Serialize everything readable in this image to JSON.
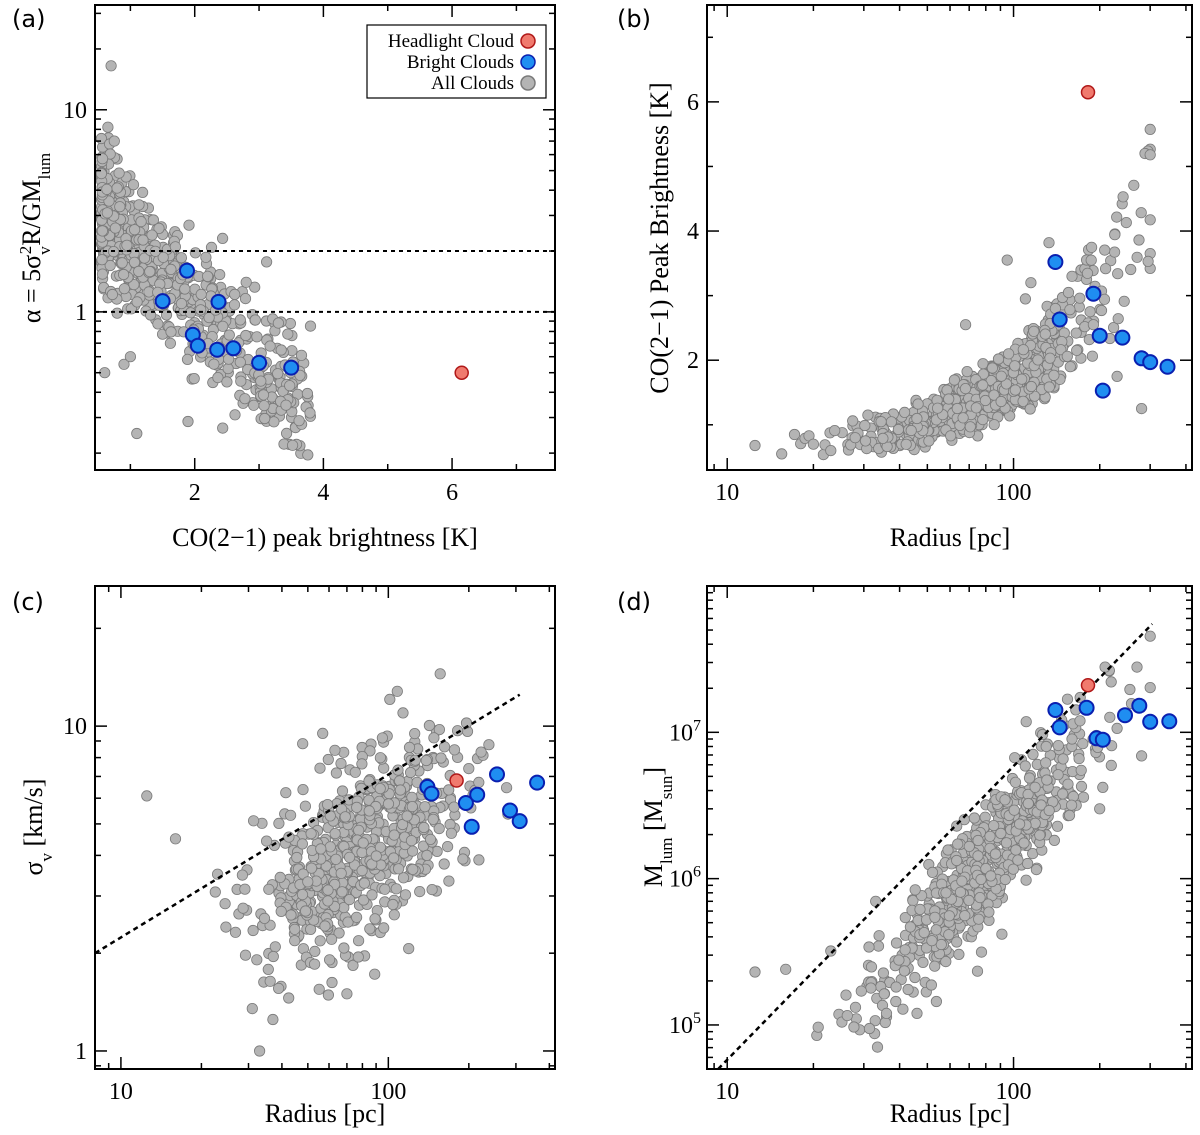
{
  "colors": {
    "all": "#b4b4b4",
    "all_edge": "#7a7a7a",
    "bright": "#1f8ef1",
    "bright_edge": "#0a1fb0",
    "headlight": "#f07a6e",
    "headlight_edge": "#b01818"
  },
  "legend": {
    "items": [
      {
        "label": "Headlight Cloud",
        "color_key": "headlight"
      },
      {
        "label": "Bright Clouds",
        "color_key": "bright"
      },
      {
        "label": "All Clouds",
        "color_key": "all"
      }
    ]
  },
  "chart_data": [
    {
      "id": "a",
      "panel_label": "(a)",
      "type": "scatter",
      "xscale": "linear",
      "yscale": "log",
      "xlim": [
        0.45,
        7.6
      ],
      "ylim": [
        0.165,
        33
      ],
      "xlabel": "CO(2−1) peak brightness [K]",
      "ylabel": {
        "base": "α = 5σ",
        "sub1": "v",
        "sup1": "2",
        "mid": "R/GM",
        "sub2": "lum"
      },
      "xticks": [
        {
          "v": 2,
          "label": "2"
        },
        {
          "v": 4,
          "label": "4"
        },
        {
          "v": 6,
          "label": "6"
        }
      ],
      "yticks": [
        {
          "v": 1,
          "label": "1"
        },
        {
          "v": 10,
          "label": "10"
        }
      ],
      "hlines": [
        1,
        2
      ],
      "legend": true,
      "all_clouds": {
        "x_range": [
          0.55,
          3.8
        ],
        "model": "alpha_vs_tpeak",
        "n": 650,
        "seed": 11,
        "extras": [
          [
            0.7,
            16.5
          ],
          [
            1.1,
            0.25
          ],
          [
            0.65,
            8.2
          ],
          [
            0.75,
            7.0
          ],
          [
            3.8,
            0.85
          ],
          [
            3.3,
            0.88
          ],
          [
            2.5,
            0.45
          ],
          [
            2.8,
            1.4
          ],
          [
            2.2,
            1.5
          ],
          [
            1.7,
            2.1
          ],
          [
            0.9,
            0.55
          ],
          [
            1.0,
            0.6
          ],
          [
            0.6,
            0.5
          ]
        ]
      },
      "bright_clouds": [
        [
          1.5,
          1.13
        ],
        [
          1.88,
          1.6
        ],
        [
          1.97,
          0.77
        ],
        [
          2.05,
          0.68
        ],
        [
          2.37,
          1.12
        ],
        [
          2.35,
          0.65
        ],
        [
          2.6,
          0.66
        ],
        [
          3.0,
          0.56
        ],
        [
          3.5,
          0.53
        ]
      ],
      "headlight": [
        6.15,
        0.5
      ]
    },
    {
      "id": "b",
      "panel_label": "(b)",
      "type": "scatter",
      "xscale": "log",
      "yscale": "linear",
      "xlim": [
        8.5,
        420
      ],
      "ylim": [
        0.3,
        7.5
      ],
      "xlabel": "Radius [pc]",
      "ylabel": "CO(2−1) Peak Brightness [K]",
      "xticks": [
        {
          "v": 10,
          "label": "10"
        },
        {
          "v": 100,
          "label": "100"
        }
      ],
      "yticks": [
        {
          "v": 2,
          "label": "2"
        },
        {
          "v": 4,
          "label": "4"
        },
        {
          "v": 6,
          "label": "6"
        }
      ],
      "all_clouds": {
        "r_range": [
          12,
          300
        ],
        "model": "tpeak_vs_radius",
        "n": 650,
        "seed": 23,
        "extras": [
          [
            12.5,
            0.68
          ],
          [
            15.5,
            0.55
          ],
          [
            20,
            0.7
          ],
          [
            23,
            0.6
          ],
          [
            28,
            0.8
          ],
          [
            31,
            1.15
          ],
          [
            133,
            3.82
          ],
          [
            95,
            3.55
          ],
          [
            110,
            2.95
          ],
          [
            115,
            3.2
          ],
          [
            140,
            2.8
          ],
          [
            280,
            1.25
          ],
          [
            230,
            1.75
          ],
          [
            190,
            2.55
          ],
          [
            160,
            3.3
          ],
          [
            68,
            2.55
          ]
        ]
      },
      "bright_clouds": [
        [
          140,
          3.52
        ],
        [
          145,
          2.63
        ],
        [
          190,
          3.03
        ],
        [
          200,
          2.38
        ],
        [
          205,
          1.53
        ],
        [
          240,
          2.35
        ],
        [
          280,
          2.03
        ],
        [
          300,
          1.97
        ],
        [
          345,
          1.9
        ]
      ],
      "headlight": [
        182,
        6.15
      ]
    },
    {
      "id": "c",
      "panel_label": "(c)",
      "type": "scatter",
      "xscale": "log",
      "yscale": "log",
      "xlim": [
        8,
        420
      ],
      "ylim": [
        0.88,
        27
      ],
      "xlabel": "Radius [pc]",
      "ylabel": {
        "base": "σ",
        "sub1": "v",
        "rest": " [km/s]"
      },
      "xticks": [
        {
          "v": 10,
          "label": "10"
        },
        {
          "v": 100,
          "label": "100"
        }
      ],
      "yticks": [
        {
          "v": 1,
          "label": "1"
        },
        {
          "v": 10,
          "label": "10"
        }
      ],
      "line": {
        "x": [
          8,
          310
        ],
        "y": [
          2.0,
          12.5
        ]
      },
      "all_clouds": {
        "r_range": [
          12,
          280
        ],
        "model": "sigma_vs_radius",
        "n": 650,
        "seed": 37,
        "extras": [
          [
            12.5,
            6.1
          ],
          [
            16,
            4.5
          ],
          [
            23,
            3.5
          ],
          [
            31,
            1.35
          ],
          [
            33,
            1.0
          ],
          [
            37,
            1.25
          ],
          [
            108,
            12.8
          ],
          [
            95,
            9.2
          ],
          [
            53,
            1.85
          ],
          [
            70,
            1.5
          ],
          [
            120,
            8.6
          ],
          [
            200,
            7.4
          ],
          [
            190,
            3.9
          ]
        ]
      },
      "bright_clouds": [
        [
          140,
          6.5
        ],
        [
          145,
          6.2
        ],
        [
          195,
          5.8
        ],
        [
          205,
          4.9
        ],
        [
          215,
          6.15
        ],
        [
          255,
          7.1
        ],
        [
          285,
          5.5
        ],
        [
          310,
          5.1
        ],
        [
          360,
          6.7
        ]
      ],
      "headlight": [
        180,
        6.8
      ]
    },
    {
      "id": "d",
      "panel_label": "(d)",
      "type": "scatter",
      "xscale": "log",
      "yscale": "log",
      "xlim": [
        8.5,
        420
      ],
      "ylim": [
        50000,
        100000000
      ],
      "xlabel": "Radius [pc]",
      "ylabel": {
        "base": "M",
        "sub1": "lum",
        "mid": " [M",
        "sub2": "sun",
        "rest": "]"
      },
      "xticks": [
        {
          "v": 10,
          "label": "10"
        },
        {
          "v": 100,
          "label": "100"
        }
      ],
      "yticks": [
        {
          "v": 100000,
          "label": "10",
          "exp": "5"
        },
        {
          "v": 1000000,
          "label": "10",
          "exp": "6"
        },
        {
          "v": 10000000,
          "label": "10",
          "exp": "7"
        }
      ],
      "line": {
        "x": [
          9.3,
          305
        ],
        "y": [
          50000,
          55000000
        ]
      },
      "all_clouds": {
        "r_range": [
          12,
          300
        ],
        "model": "mass_vs_radius",
        "n": 650,
        "seed": 53,
        "extras": [
          [
            12.5,
            230000
          ],
          [
            16,
            240000
          ],
          [
            23,
            320000
          ],
          [
            26,
            160000
          ],
          [
            33,
            700000
          ],
          [
            36,
            120000
          ],
          [
            46,
            120000
          ],
          [
            280,
            6900000
          ],
          [
            205,
            4200000
          ],
          [
            200,
            3000000
          ],
          [
            160,
            9000000
          ],
          [
            130,
            8000000
          ]
        ]
      },
      "bright_clouds": [
        [
          140,
          14200000
        ],
        [
          145,
          10800000
        ],
        [
          180,
          14700000
        ],
        [
          195,
          9100000
        ],
        [
          205,
          8900000
        ],
        [
          245,
          13100000
        ],
        [
          275,
          15200000
        ],
        [
          300,
          11800000
        ],
        [
          350,
          11900000
        ]
      ],
      "headlight": [
        182,
        21000000
      ]
    }
  ]
}
